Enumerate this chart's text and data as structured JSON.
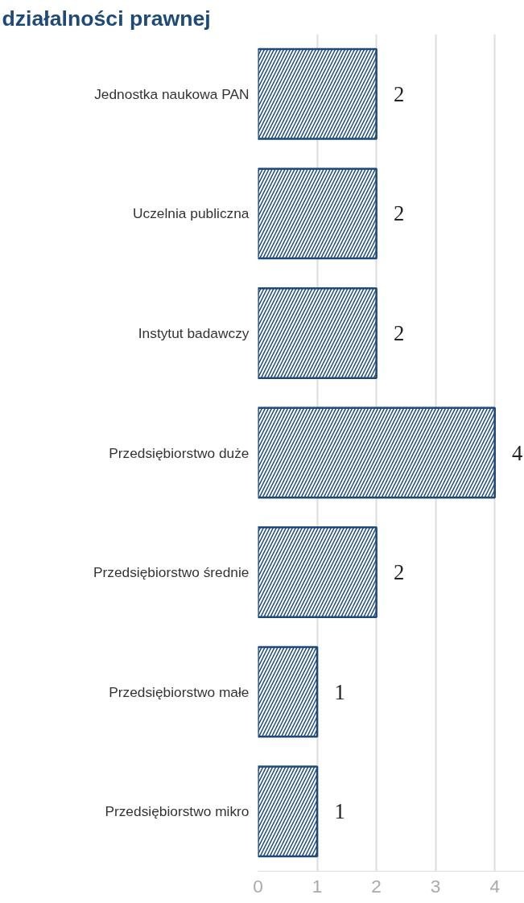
{
  "chart_data": {
    "type": "bar",
    "orientation": "horizontal",
    "title": "działalności prawnej",
    "categories": [
      "Jednostka naukowa PAN",
      "Uczelnia publiczna",
      "Instytut badawczy",
      "Przedsiębiorstwo duże",
      "Przedsiębiorstwo średnie",
      "Przedsiębiorstwo małe",
      "Przedsiębiorstwo mikro"
    ],
    "values": [
      2,
      2,
      2,
      4,
      2,
      1,
      1
    ],
    "color": "#1d4a78",
    "xlim": [
      0,
      4.5
    ],
    "xticks": [
      0,
      1,
      2,
      3,
      4
    ],
    "grid": "x",
    "data_labels": true
  }
}
